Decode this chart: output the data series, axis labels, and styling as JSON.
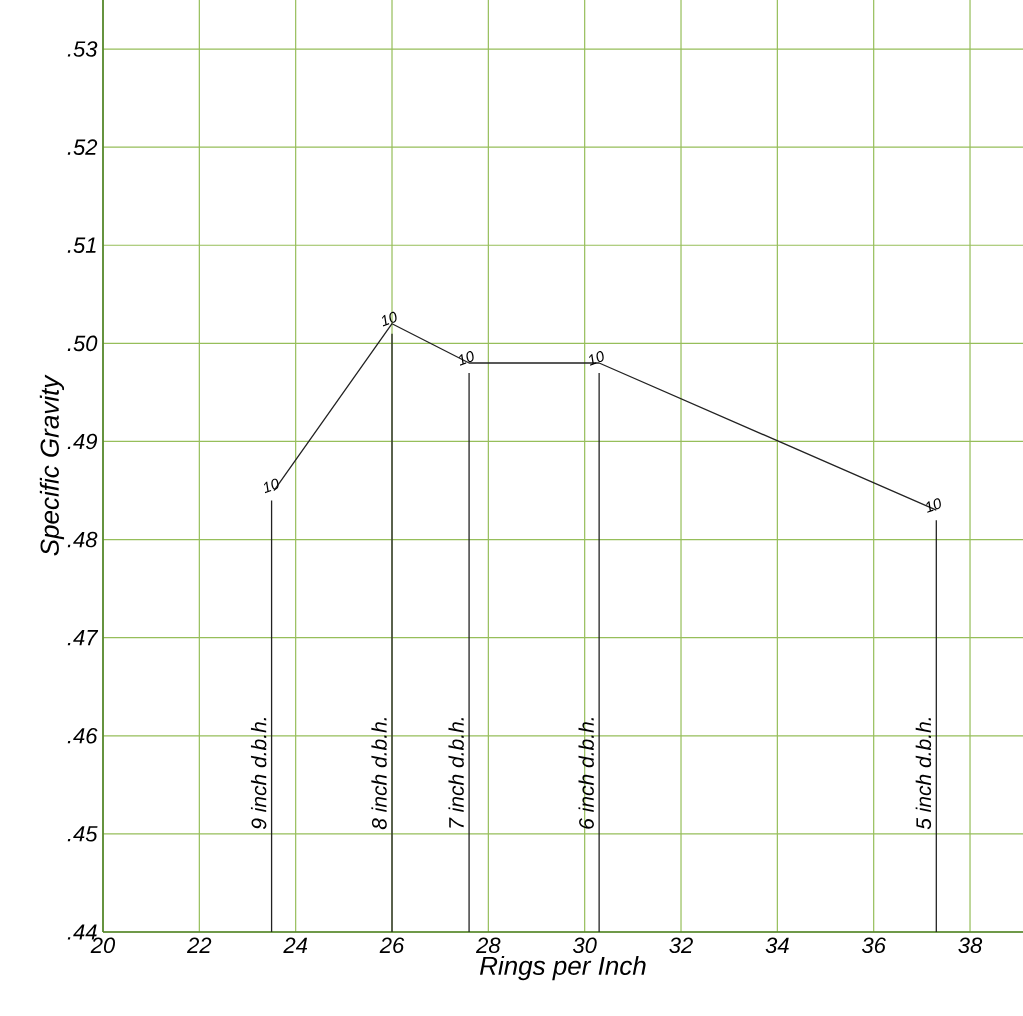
{
  "chart_data": {
    "type": "line",
    "xlabel": "Rings per Inch",
    "ylabel": "Specific Gravity",
    "x": [
      23.55,
      26.0,
      27.6,
      30.3,
      37.3
    ],
    "series": [
      {
        "color": "#222222",
        "values": [
          0.485,
          0.502,
          0.498,
          0.498,
          0.483
        ]
      }
    ],
    "xlim": [
      20,
      39.1
    ],
    "ylim": [
      0.44,
      0.535
    ],
    "xticks": [
      20,
      22,
      24,
      26,
      28,
      30,
      32,
      34,
      36,
      38
    ],
    "yticks": [
      {
        "value": 0.44,
        "label": ".44"
      },
      {
        "value": 0.45,
        "label": ".45"
      },
      {
        "value": 0.46,
        "label": ".46"
      },
      {
        "value": 0.47,
        "label": ".47"
      },
      {
        "value": 0.48,
        "label": ".48"
      },
      {
        "value": 0.49,
        "label": ".49"
      },
      {
        "value": 0.5,
        "label": ".50"
      },
      {
        "value": 0.51,
        "label": ".51"
      },
      {
        "value": 0.52,
        "label": ".52"
      },
      {
        "value": 0.53,
        "label": ".53"
      }
    ],
    "grid": true,
    "marker": "none",
    "line_style": "solid",
    "ref_lines": [
      {
        "axis": "x",
        "value": 23.5,
        "label": "9 inch d.b.h.",
        "color": "#222222"
      },
      {
        "axis": "x",
        "value": 26.0,
        "label": "8 inch d.b.h.",
        "color": "#222222"
      },
      {
        "axis": "x",
        "value": 27.6,
        "label": "7 inch d.b.h.",
        "color": "#222222"
      },
      {
        "axis": "x",
        "value": 30.3,
        "label": "6 inch d.b.h.",
        "color": "#222222"
      },
      {
        "axis": "x",
        "value": 37.3,
        "label": "5 inch d.b.h.",
        "color": "#222222"
      }
    ],
    "annotations": [
      {
        "text": "10",
        "x": 23.55,
        "y": 0.485
      },
      {
        "text": "10",
        "x": 26.0,
        "y": 0.502
      },
      {
        "text": "10",
        "x": 27.6,
        "y": 0.498
      },
      {
        "text": "10",
        "x": 30.3,
        "y": 0.498
      },
      {
        "text": "10",
        "x": 37.3,
        "y": 0.483
      }
    ]
  }
}
